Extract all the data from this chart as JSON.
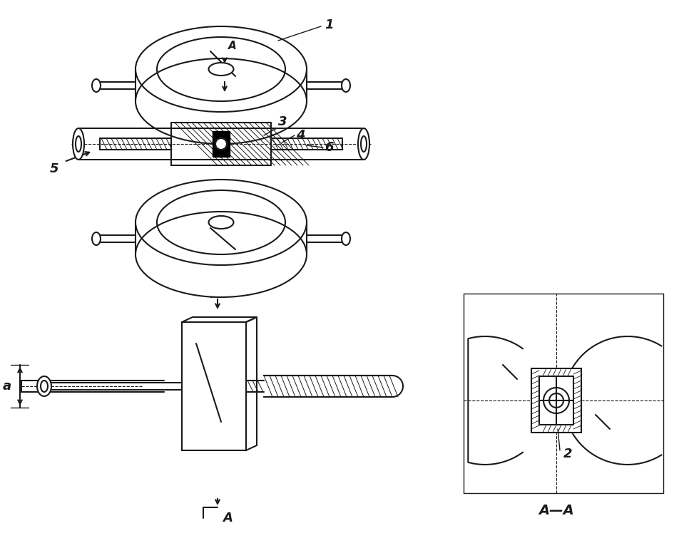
{
  "bg_color": "#ffffff",
  "line_color": "#1a1a1a",
  "label_A_top": "A",
  "label_AA": "A—A",
  "label_a": "a",
  "label_1": "1",
  "label_2": "2",
  "label_3": "3",
  "label_4": "4",
  "label_5": "5",
  "label_6": "6",
  "figsize": [
    9.53,
    7.62
  ],
  "dpi": 100
}
